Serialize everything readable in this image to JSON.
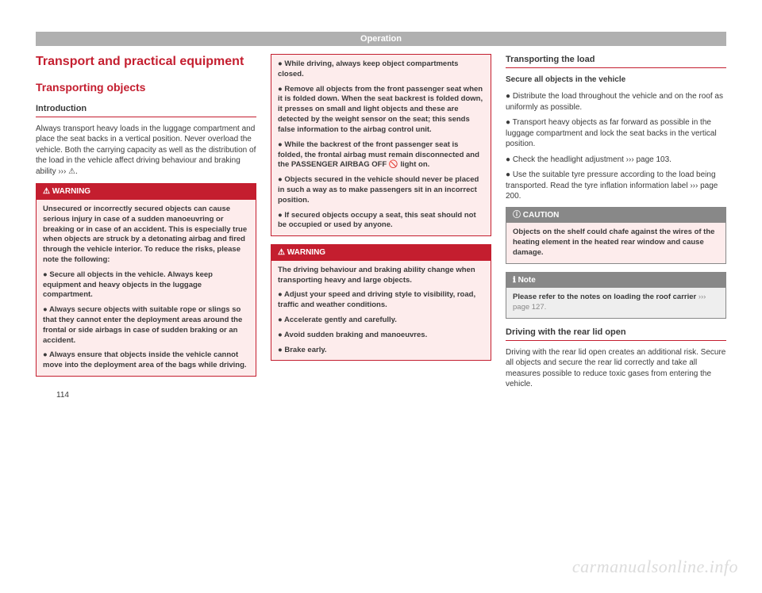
{
  "header": "Operation",
  "page_number": "114",
  "watermark": "carmanualsonline.info",
  "colors": {
    "accent": "#c41e2f",
    "header_bar": "#b0b0b0",
    "warning_bg": "#fdecec",
    "note_bg": "#eeeeee",
    "grey_box": "#888888",
    "text": "#3a3a3a"
  },
  "col1": {
    "main_title": "Transport and practical equipment",
    "section_title": "Transporting objects",
    "sub_heading": "Introduction",
    "intro_text": "Always transport heavy loads in the luggage compartment and place the seat backs in a vertical position. Never overload the vehicle. Both the carrying capacity as well as the distribution of the load in the vehicle affect driving behaviour and braking ability ››› ⚠.",
    "warning_label": "⚠  WARNING",
    "warning_body": {
      "p1": "Unsecured or incorrectly secured objects can cause serious injury in case of a sudden manoeuvring or breaking or in case of an accident. This is especially true when objects are struck by a detonating airbag and fired through the vehicle interior. To reduce the risks, please note the following:",
      "p2": "● Secure all objects in the vehicle. Always keep equipment and heavy objects in the luggage compartment.",
      "p3": "● Always secure objects with suitable rope or slings so that they cannot enter the deployment areas around the frontal or side airbags in case of sudden braking or an accident.",
      "p4": "● Always ensure that objects inside the vehicle cannot move into the deployment area of the bags while driving."
    }
  },
  "col2": {
    "cont": {
      "p1": "● While driving, always keep object compartments closed.",
      "p2": "● Remove all objects from the front passenger seat when it is folded down. When the seat backrest is folded down, it presses on small and light objects and these are detected by the weight sensor on the seat; this sends false information to the airbag control unit.",
      "p3": "● While the backrest of the front passenger seat is folded, the frontal airbag must remain disconnected and the PASSENGER AIRBAG OFF 🚫 light on.",
      "p4": "● Objects secured in the vehicle should never be placed in such a way as to make passengers sit in an incorrect position.",
      "p5": "● If secured objects occupy a seat, this seat should not be occupied or used by anyone."
    },
    "warning_label": "⚠  WARNING",
    "warning_body": {
      "p1": "The driving behaviour and braking ability change when transporting heavy and large objects.",
      "p2": "● Adjust your speed and driving style to visibility, road, traffic and weather conditions.",
      "p3": "● Accelerate gently and carefully.",
      "p4": "● Avoid sudden braking and manoeuvres.",
      "p5": "● Brake early."
    }
  },
  "col3": {
    "sub_heading1": "Transporting the load",
    "secure_title": "Secure all objects in the vehicle",
    "bullets": {
      "b1": "● Distribute the load throughout the vehicle and on the roof as uniformly as possible.",
      "b2": "● Transport heavy objects as far forward as possible in the luggage compartment and lock the seat backs in the vertical position.",
      "b3": "● Check the headlight adjustment ››› page 103.",
      "b4": "● Use the suitable tyre pressure according to the load being transported. Read the tyre inflation information label ››› page 200."
    },
    "caution_label": "ⓘ  CAUTION",
    "caution_body": "Objects on the shelf could chafe against the wires of the heating element in the heated rear window and cause damage.",
    "note_label": "ℹ  Note",
    "note_body": "Please refer to the notes on loading the roof carrier ",
    "note_ref": "››› page 127.",
    "sub_heading2": "Driving with the rear lid open",
    "rear_lid_text": "Driving with the rear lid open creates an additional risk. Secure all objects and secure the rear lid correctly and take all measures possible to reduce toxic gases from entering the vehicle."
  }
}
